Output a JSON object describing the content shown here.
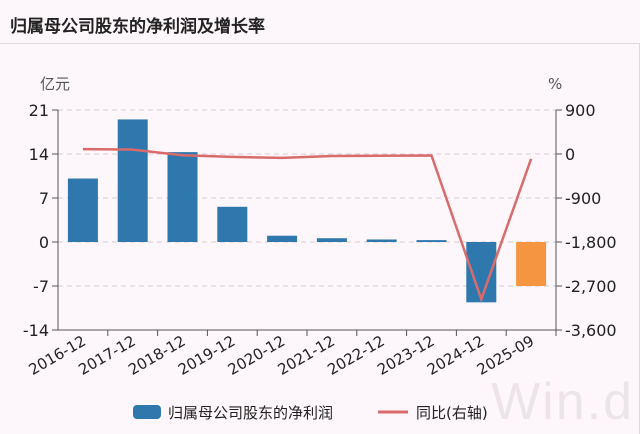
{
  "title": "归属母公司股东的净利润及增长率",
  "watermark": "Win.d",
  "chart_data": {
    "type": "bar+line",
    "categories": [
      "2016-12",
      "2017-12",
      "2018-12",
      "2019-12",
      "2020-12",
      "2021-12",
      "2022-12",
      "2023-12",
      "2024-12",
      "2025-09"
    ],
    "left_axis": {
      "unit": "亿元",
      "ylim": [
        -14,
        21
      ],
      "ticks": [
        21,
        14,
        7,
        0,
        -7,
        -14
      ]
    },
    "right_axis": {
      "unit": "%",
      "ylim": [
        -3600,
        900
      ],
      "ticks": [
        "900",
        "0",
        "-900",
        "-1,800",
        "-2,700",
        "-3,600"
      ],
      "tick_values": [
        900,
        0,
        -900,
        -1800,
        -2700,
        -3600
      ]
    },
    "grid": true,
    "legend": "bottom",
    "series": [
      {
        "name": "归属母公司股东的净利润",
        "type": "bar",
        "axis": "left",
        "color": "#2e78ae",
        "highlight_color": "#f59540",
        "values": [
          10.1,
          19.5,
          14.3,
          5.6,
          1.0,
          0.6,
          0.4,
          0.3,
          -9.6,
          -7.0
        ]
      },
      {
        "name": "同比(右轴)",
        "type": "line",
        "axis": "right",
        "color": "#d96b6b",
        "values": [
          100,
          90,
          -25,
          -60,
          -80,
          -40,
          -35,
          -30,
          -2970,
          -100
        ]
      }
    ]
  }
}
